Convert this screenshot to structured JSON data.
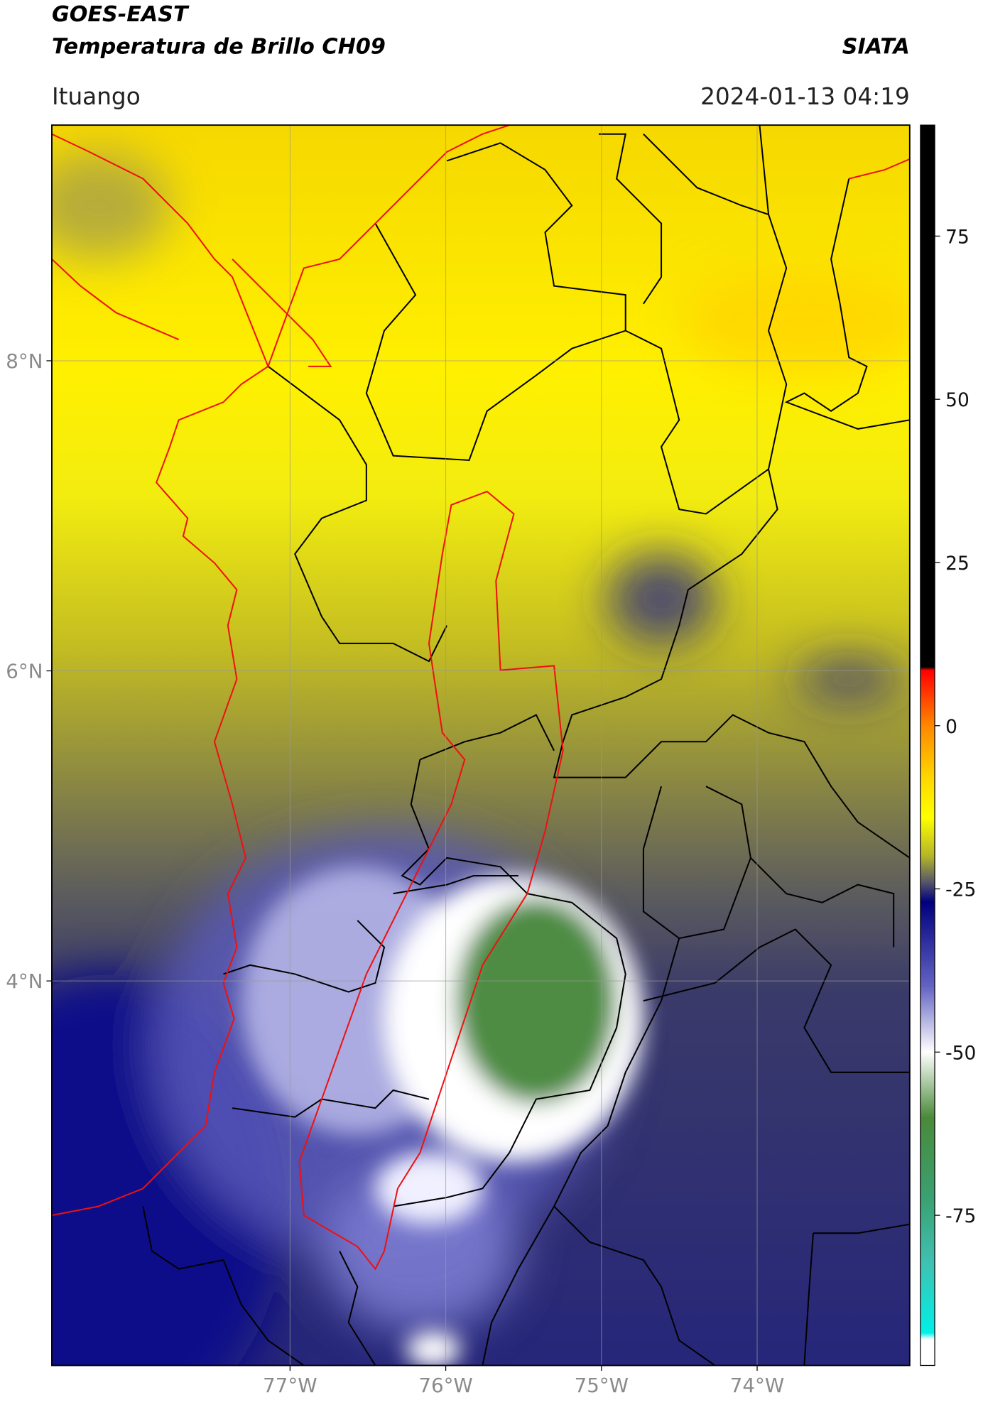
{
  "header": {
    "title": "GOES-EAST",
    "subtitle": "Temperatura de Brillo CH09",
    "source": "SIATA",
    "location": "Ituango",
    "datetime": "2024-01-13 04:19"
  },
  "map": {
    "lon_range": [
      -78.53,
      -73.02
    ],
    "lat_range": [
      1.52,
      9.52
    ],
    "lon_ticks": [
      {
        "value": -77,
        "label": "77°W"
      },
      {
        "value": -76,
        "label": "76°W"
      },
      {
        "value": -75,
        "label": "75°W"
      },
      {
        "value": -74,
        "label": "74°W"
      }
    ],
    "lat_ticks": [
      {
        "value": 8,
        "label": "8°N"
      },
      {
        "value": 6,
        "label": "6°N"
      },
      {
        "value": 4,
        "label": "4°N"
      }
    ],
    "grid": true
  },
  "colorbar": {
    "range": [
      -98,
      92
    ],
    "ticks": [
      -75,
      -50,
      -25,
      0,
      25,
      50,
      75
    ],
    "stops": [
      {
        "value": 92,
        "color": "#000000"
      },
      {
        "value": 9,
        "color": "#000000"
      },
      {
        "value": 8.5,
        "color": "#ff0000"
      },
      {
        "value": 0,
        "color": "#ff8800"
      },
      {
        "value": -8,
        "color": "#ffd700"
      },
      {
        "value": -14,
        "color": "#ffff00"
      },
      {
        "value": -20,
        "color": "#b4b42a"
      },
      {
        "value": -24,
        "color": "#55556a"
      },
      {
        "value": -27,
        "color": "#00007f"
      },
      {
        "value": -40,
        "color": "#6464c4"
      },
      {
        "value": -50,
        "color": "#ffffff"
      },
      {
        "value": -60,
        "color": "#4a8a3a"
      },
      {
        "value": -72,
        "color": "#3aa070"
      },
      {
        "value": -82,
        "color": "#40c0b0"
      },
      {
        "value": -93,
        "color": "#00f0e8"
      },
      {
        "value": -94,
        "color": "#ffffff"
      },
      {
        "value": -98,
        "color": "#ffffff"
      }
    ]
  }
}
